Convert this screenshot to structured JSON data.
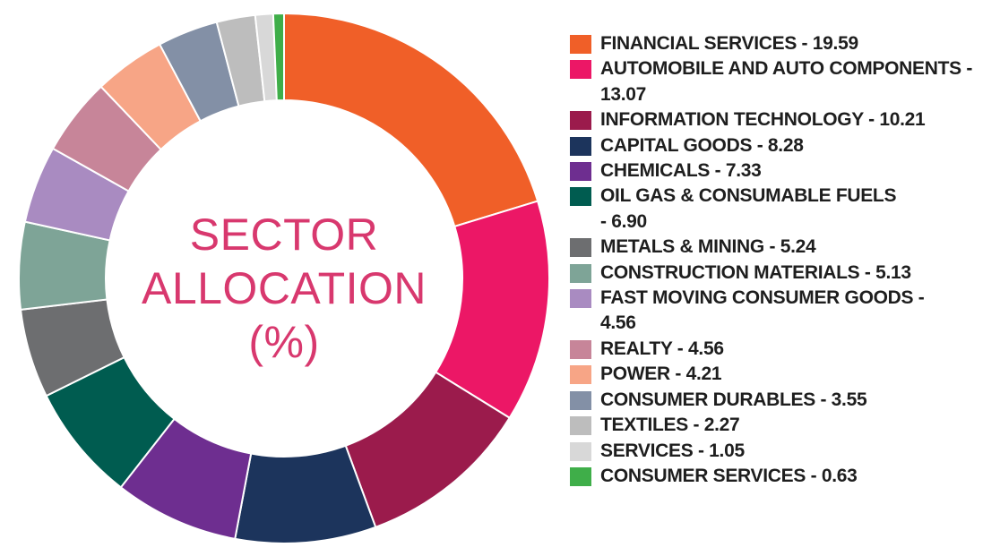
{
  "chart_data": {
    "type": "pie",
    "variant": "donut",
    "title_lines": [
      "SECTOR",
      "ALLOCATION",
      "(%)"
    ],
    "title_color": "#d8386e",
    "legend_position": "right",
    "slices": [
      {
        "label": "FINANCIAL SERVICES - 19.59",
        "legend_lines": [
          "FINANCIAL SERVICES - 19.59"
        ],
        "value": 19.59,
        "color": "#f05f28"
      },
      {
        "label": "AUTOMOBILE AND AUTO COMPONENTS - 13.07",
        "legend_lines": [
          "AUTOMOBILE AND AUTO COMPONENTS -",
          "13.07"
        ],
        "value": 13.07,
        "color": "#ec1766"
      },
      {
        "label": "INFORMATION TECHNOLOGY - 10.21",
        "legend_lines": [
          "INFORMATION TECHNOLOGY - 10.21"
        ],
        "value": 10.21,
        "color": "#9b1b4c"
      },
      {
        "label": "CAPITAL GOODS - 8.28",
        "legend_lines": [
          "CAPITAL GOODS - 8.28"
        ],
        "value": 8.28,
        "color": "#1c345c"
      },
      {
        "label": "CHEMICALS - 7.33",
        "legend_lines": [
          "CHEMICALS - 7.33"
        ],
        "value": 7.33,
        "color": "#6e2e90"
      },
      {
        "label": "OIL GAS & CONSUMABLE FUELS - 6.90",
        "legend_lines": [
          "OIL GAS & CONSUMABLE FUELS",
          "- 6.90"
        ],
        "value": 6.9,
        "color": "#005c50"
      },
      {
        "label": "METALS & MINING - 5.24",
        "legend_lines": [
          "METALS & MINING - 5.24"
        ],
        "value": 5.24,
        "color": "#6d6e70"
      },
      {
        "label": "CONSTRUCTION MATERIALS - 5.13",
        "legend_lines": [
          "CONSTRUCTION MATERIALS - 5.13"
        ],
        "value": 5.13,
        "color": "#7ea497"
      },
      {
        "label": "FAST MOVING CONSUMER GOODS - 4.56",
        "legend_lines": [
          "FAST MOVING CONSUMER GOODS -",
          "4.56"
        ],
        "value": 4.56,
        "color": "#a98bc1"
      },
      {
        "label": "REALTY - 4.56",
        "legend_lines": [
          "REALTY - 4.56"
        ],
        "value": 4.56,
        "color": "#c78599"
      },
      {
        "label": "POWER - 4.21",
        "legend_lines": [
          "POWER - 4.21"
        ],
        "value": 4.21,
        "color": "#f7a586"
      },
      {
        "label": "CONSUMER DURABLES - 3.55",
        "legend_lines": [
          "CONSUMER DURABLES - 3.55"
        ],
        "value": 3.55,
        "color": "#8390a6"
      },
      {
        "label": "TEXTILES - 2.27",
        "legend_lines": [
          "TEXTILES - 2.27"
        ],
        "value": 2.27,
        "color": "#bdbdbd"
      },
      {
        "label": "SERVICES - 1.05",
        "legend_lines": [
          "SERVICES - 1.05"
        ],
        "value": 1.05,
        "color": "#d8d8d8"
      },
      {
        "label": "CONSUMER SERVICES - 0.63",
        "legend_lines": [
          "CONSUMER SERVICES - 0.63"
        ],
        "value": 0.63,
        "color": "#3fae49"
      }
    ]
  }
}
